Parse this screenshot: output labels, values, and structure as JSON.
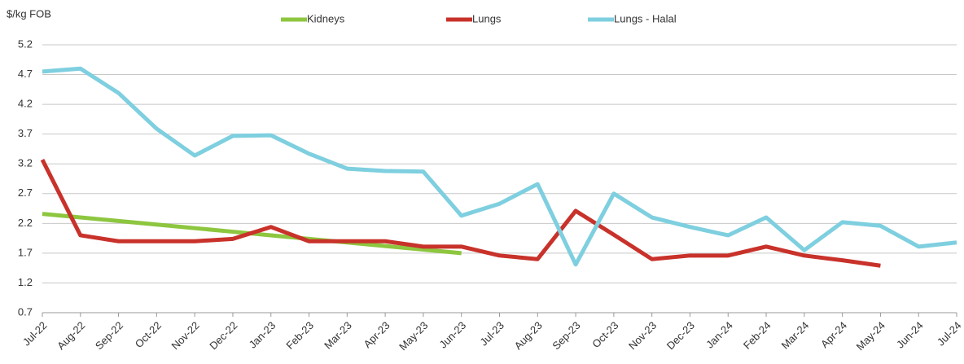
{
  "chart_data": {
    "type": "line",
    "y_label": "$/kg FOB",
    "categories": [
      "Jul-22",
      "Aug-22",
      "Sep-22",
      "Oct-22",
      "Nov-22",
      "Dec-22",
      "Jan-23",
      "Feb-23",
      "Mar-23",
      "Apr-23",
      "May-23",
      "Jun-23",
      "Jul-23",
      "Aug-23",
      "Sep-23",
      "Oct-23",
      "Nov-23",
      "Dec-23",
      "Jan-24",
      "Feb-24",
      "Mar-24",
      "Apr-24",
      "May-24",
      "Jun-24",
      "Jul-24"
    ],
    "series": [
      {
        "name": "Kidneys",
        "color": "#8dc63f",
        "values": [
          2.36,
          2.3,
          2.24,
          2.18,
          2.12,
          2.06,
          2.0,
          1.94,
          1.88,
          1.82,
          1.76,
          1.7,
          null,
          null,
          null,
          null,
          null,
          null,
          null,
          null,
          null,
          null,
          null,
          null,
          null
        ]
      },
      {
        "name": "Lungs",
        "color": "#c8322a",
        "values": [
          3.27,
          2.0,
          1.9,
          1.9,
          1.9,
          1.94,
          2.14,
          1.9,
          1.9,
          1.9,
          1.81,
          1.81,
          1.66,
          1.6,
          2.41,
          2.01,
          1.6,
          1.66,
          1.66,
          1.81,
          1.66,
          1.58,
          1.49,
          null,
          null
        ]
      },
      {
        "name": "Lungs - Halal",
        "color": "#7ecfdf",
        "values": [
          4.75,
          4.8,
          4.39,
          3.79,
          3.34,
          3.67,
          3.68,
          3.37,
          3.12,
          3.08,
          3.07,
          2.33,
          2.53,
          2.86,
          1.51,
          2.7,
          2.3,
          2.14,
          2.0,
          2.3,
          1.75,
          2.22,
          2.16,
          1.81,
          1.88
        ]
      }
    ],
    "ylim": [
      0.7,
      5.2
    ],
    "yticks": [
      0.7,
      1.2,
      1.7,
      2.2,
      2.7,
      3.2,
      3.7,
      4.2,
      4.7,
      5.2
    ],
    "grid": true
  }
}
